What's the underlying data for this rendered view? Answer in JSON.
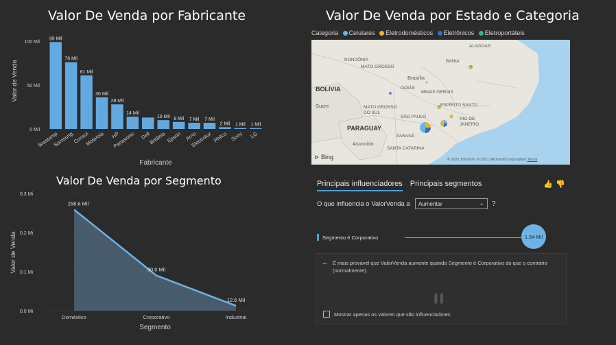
{
  "chart1": {
    "title": "Valor De Venda por Fabricante",
    "chart_data": {
      "type": "bar",
      "xlabel": "Fabricante",
      "ylabel": "Valor de Venda",
      "categories": [
        "Brastemp",
        "Samsung",
        "Consul",
        "Motorola",
        "HP",
        "Panasonic",
        "Dell",
        "Britânia",
        "Epson",
        "Arno",
        "Electrolux",
        "Philco",
        "Sony",
        "LG"
      ],
      "values": [
        99,
        76,
        61,
        36,
        28,
        14,
        13,
        10,
        8,
        7,
        7,
        2,
        1,
        1
      ],
      "data_labels": [
        "99 Mil",
        "76 Mil",
        "61 Mil",
        "36 Mil",
        "28 Mil",
        "14 Mil",
        "",
        "10 Mil",
        "8 Mil",
        "7 Mil",
        "7 Mil",
        "2 Mil",
        "1 Mil",
        "1 Mil"
      ],
      "yticks": [
        "0 Mil",
        "50 Mil",
        "100 Mil"
      ],
      "ylim": [
        0,
        100
      ],
      "color": "#62a9e0"
    }
  },
  "chart2": {
    "title": "Valor De Venda por Estado e Categoria",
    "legend_title": "Categoria",
    "legend": [
      {
        "label": "Celulares",
        "color": "#6db3e6"
      },
      {
        "label": "Eletrodomésticos",
        "color": "#e8b622"
      },
      {
        "label": "Eletrônicos",
        "color": "#3a6fb8"
      },
      {
        "label": "Eletroportáteis",
        "color": "#2fb39a"
      }
    ],
    "map_labels": {
      "bolivia": "BOLIVIA",
      "paraguay": "PARAGUAY",
      "rondonia": "RONDÔNIA",
      "mato_grosso": "MATO GROSSO",
      "brasilia": "Brasília",
      "goias": "GOIÁS",
      "minas": "MINAS GERAIS",
      "bahia": "BAHIA",
      "alagoas": "ALAGOAS",
      "ms": "MATO GROSSO DO SUL",
      "sao_paulo": "SÃO PAULO",
      "es": "ESPÍRITO SANTO",
      "rio": "RIO DE JANEIRO",
      "parana": "PARANÁ",
      "sc": "SANTA CATARINA",
      "asuncion": "Asunción",
      "sucre": "Sucre",
      "bing": "Bing",
      "copyright": "© 2021 TomTom, © 2021 Microsoft Corporation",
      "terms": "Terms"
    }
  },
  "chart3": {
    "title": "Valor De Venda por Segmento",
    "chart_data": {
      "type": "area",
      "xlabel": "Segmento",
      "ylabel": "Valor de Venda",
      "categories": [
        "Doméstico",
        "Corporativo",
        "Industrial"
      ],
      "values": [
        0.2586,
        0.09,
        0.0126
      ],
      "data_labels": [
        "258.6 Mil",
        "90.0 Mil",
        "12.6 Mil"
      ],
      "yticks": [
        "0.0 Mi",
        "0.1 Mi",
        "0.2 Mi",
        "0.3 Mi"
      ],
      "ylim": [
        0,
        0.3
      ]
    }
  },
  "influencers": {
    "tabs": [
      "Principais influenciadores",
      "Principais segmentos"
    ],
    "question": "O que influencia o ValorVenda a",
    "select_value": "Aumentar",
    "help": "?",
    "factor_label": "Segmento é Corporativo",
    "bubble_value": "1.54 Mil",
    "explanation": "É mais provável que ValorVenda aumente quando Segmento é Corporativo do que o contrário (normalmente).",
    "checkbox_label": "Mostrar apenas os valores que são influenciadores"
  }
}
